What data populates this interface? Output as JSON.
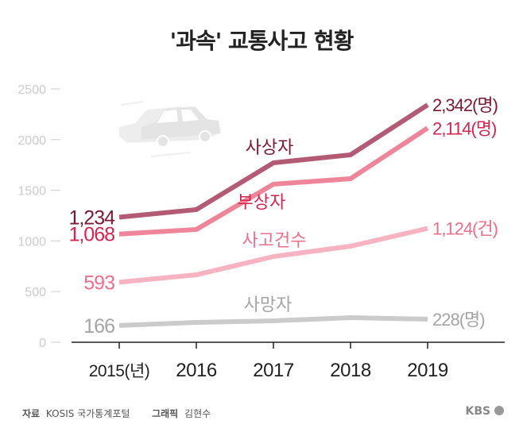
{
  "title": "'과속' 교통사고 현황",
  "chart_data": {
    "type": "line",
    "title": "'과속' 교통사고 현황",
    "xlabel": "",
    "ylabel": "",
    "categories": [
      "2015",
      "2016",
      "2017",
      "2018",
      "2019"
    ],
    "x_tick_labels": [
      "2015(년)",
      "2016",
      "2017",
      "2018",
      "2019"
    ],
    "ylim": [
      0,
      2500
    ],
    "y_ticks": [
      0,
      500,
      1000,
      1500,
      2000,
      2500
    ],
    "grid": false,
    "series": [
      {
        "name": "사상자",
        "values": [
          1234,
          1309,
          1771,
          1850,
          2342
        ],
        "start_label": "1,234",
        "end_label": "2,342(명)",
        "color": "#b35a74",
        "label_color": "#7a1a33"
      },
      {
        "name": "부상자",
        "values": [
          1068,
          1113,
          1560,
          1614,
          2114
        ],
        "start_label": "1,068",
        "end_label": "2,114(명)",
        "color": "#ee8599",
        "label_color": "#d6264f"
      },
      {
        "name": "사고건수",
        "values": [
          593,
          666,
          846,
          948,
          1124
        ],
        "start_label": "593",
        "end_label": "1,124(건)",
        "color": "#f8b3c3",
        "label_color": "#ef6f8a"
      },
      {
        "name": "사망자",
        "values": [
          166,
          196,
          212,
          243,
          228
        ],
        "start_label": "166",
        "end_label": "228(명)",
        "color": "#cbcbcb",
        "label_color": "#a5a5a5"
      }
    ]
  },
  "footer": {
    "source_label": "자료",
    "source": "KOSIS 국가통계포털",
    "graphic_label": "그래픽",
    "graphic": "김현수",
    "logo": "KBS"
  }
}
